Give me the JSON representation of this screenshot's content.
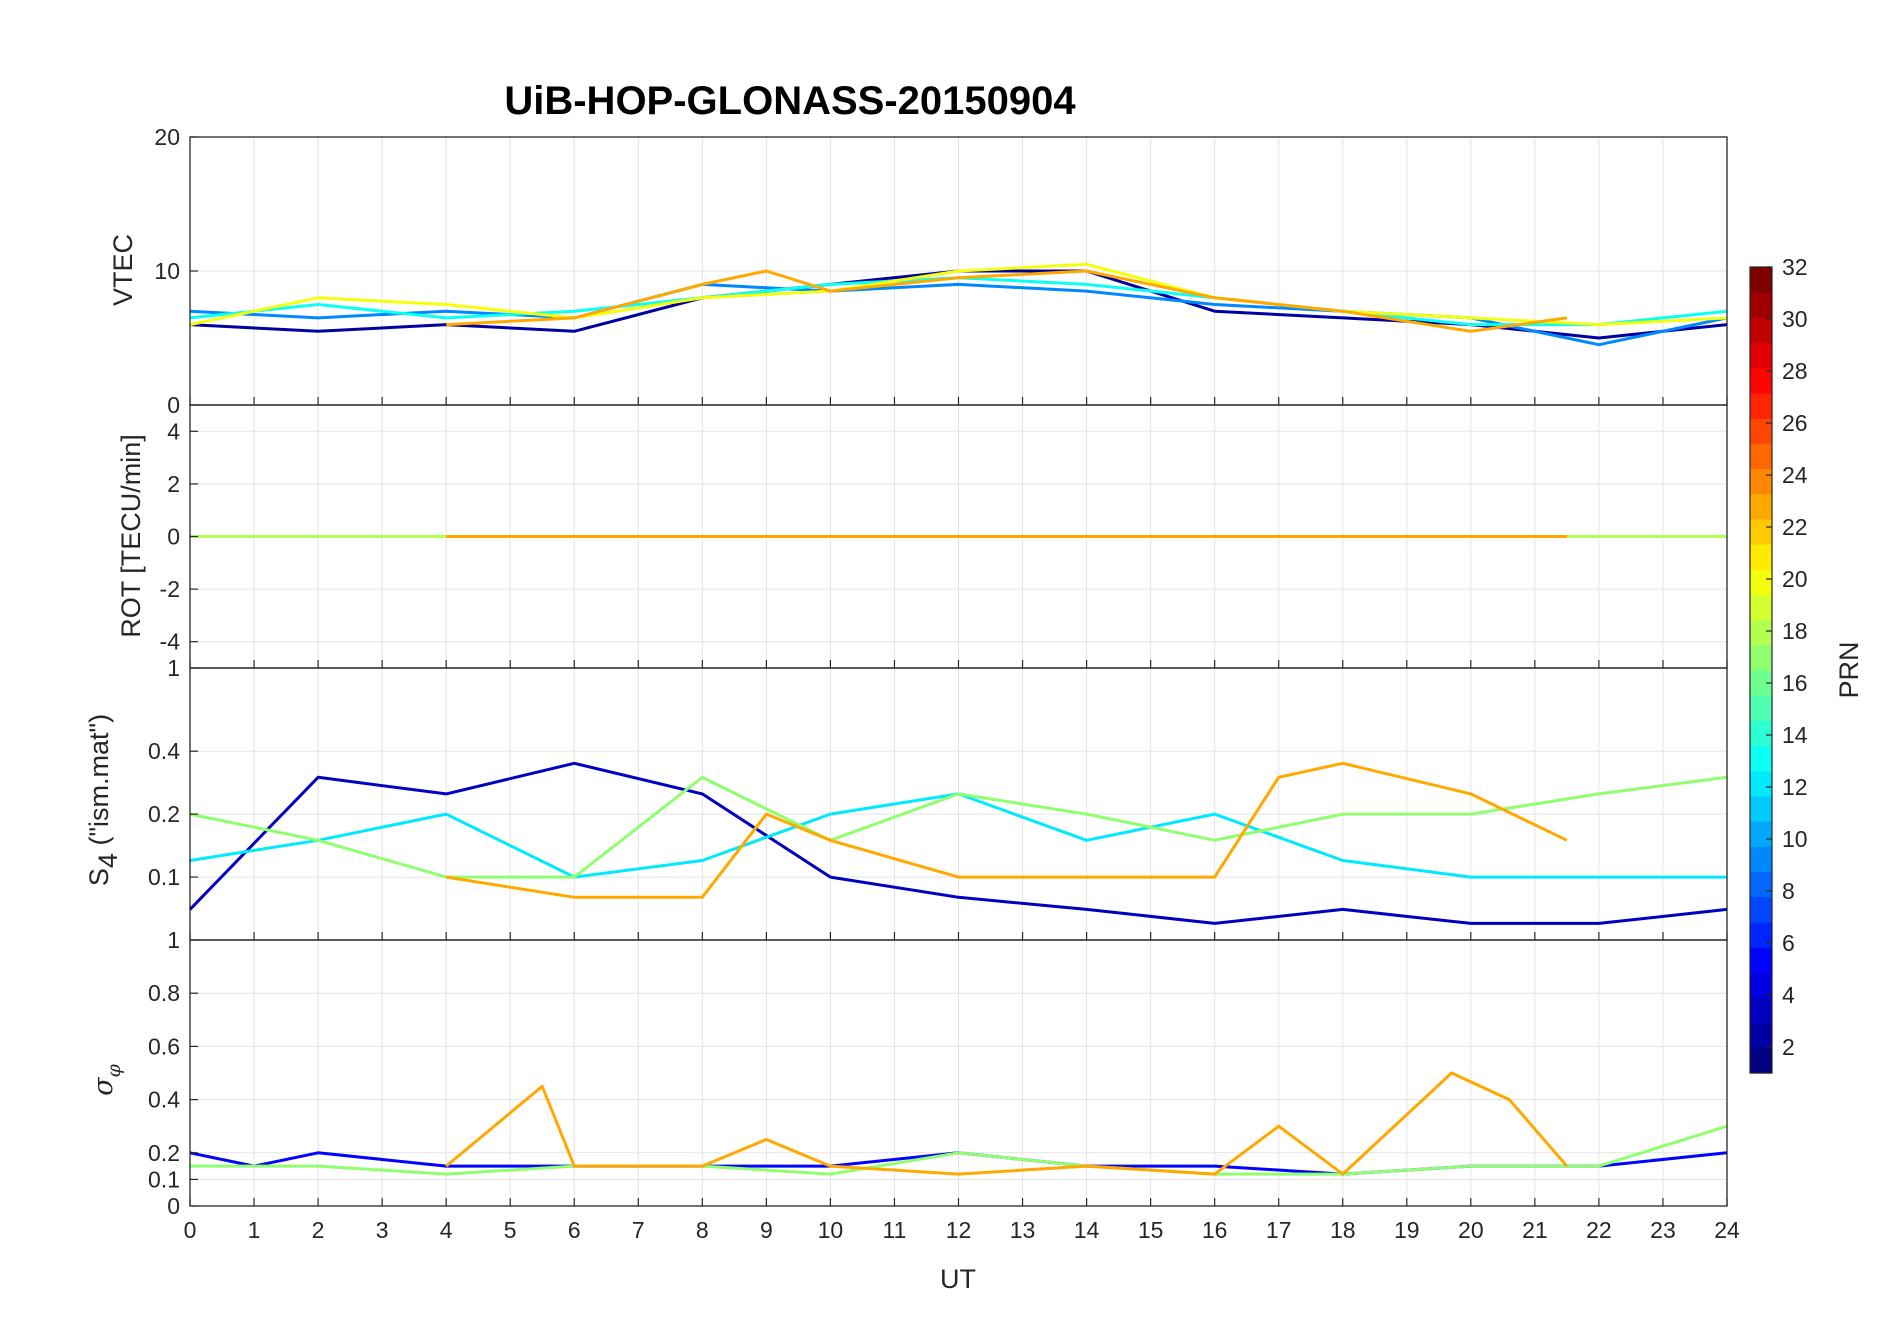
{
  "title": "UiB-HOP-GLONASS-20150904",
  "x_label": "UT",
  "x_ticks": [
    "0",
    "1",
    "2",
    "3",
    "4",
    "5",
    "6",
    "7",
    "8",
    "9",
    "10",
    "11",
    "12",
    "13",
    "14",
    "15",
    "16",
    "17",
    "18",
    "19",
    "20",
    "21",
    "22",
    "23",
    "24"
  ],
  "colorbar": {
    "label": "PRN",
    "ticks": [
      "2",
      "4",
      "6",
      "8",
      "10",
      "12",
      "14",
      "16",
      "18",
      "20",
      "22",
      "24",
      "26",
      "28",
      "30",
      "32"
    ],
    "colormap": "jet",
    "range": [
      1,
      32
    ]
  },
  "panels": {
    "vtec": {
      "ylabel": "VTEC",
      "ticks": [
        "0",
        "10",
        "20"
      ]
    },
    "rot": {
      "ylabel": "ROT [TECU/min]",
      "ticks": [
        "-4",
        "-2",
        "0",
        "2",
        "4"
      ]
    },
    "s4": {
      "ylabel_s": "S",
      "ylabel_sub": "4",
      "ylabel_rest": " (\"ism.mat\")",
      "ticks": [
        "0.1",
        "0.2",
        "0.4",
        "1"
      ]
    },
    "sigma": {
      "ylabel_sym": "σ",
      "ylabel_sub": "φ",
      "ticks": [
        "0",
        "0.1",
        "0.2",
        "0.4",
        "0.6",
        "0.8",
        "1"
      ]
    }
  },
  "chart_data": {
    "type": "line",
    "title": "UiB-HOP-GLONASS-20150904",
    "xlabel": "UT",
    "xlim": [
      0,
      24
    ],
    "color_by": "PRN",
    "color_range": [
      1,
      32
    ],
    "grid": true,
    "subplots": [
      {
        "ylabel": "VTEC",
        "ylim": [
          0,
          20
        ],
        "series": [
          {
            "prn": 2,
            "x": [
              0,
              2,
              4,
              6,
              8,
              10,
              12,
              14,
              16,
              18,
              20,
              22,
              24
            ],
            "y": [
              6,
              5.5,
              6,
              5.5,
              8,
              9,
              10,
              10,
              7,
              6.5,
              6,
              5,
              6
            ]
          },
          {
            "prn": 9,
            "x": [
              0,
              2,
              4,
              6,
              8,
              10,
              12,
              14,
              16,
              18,
              20,
              22,
              24
            ],
            "y": [
              7,
              6.5,
              7,
              6.5,
              9,
              8.5,
              9,
              8.5,
              7.5,
              7,
              6.5,
              4.5,
              6.5
            ]
          },
          {
            "prn": 13,
            "x": [
              0,
              2,
              4,
              6,
              8,
              10,
              12,
              14,
              16,
              18,
              20,
              22,
              24
            ],
            "y": [
              6.5,
              7.5,
              6.5,
              7,
              8,
              9,
              9.5,
              9,
              8,
              7,
              6,
              6,
              7
            ]
          },
          {
            "prn": 20,
            "x": [
              0,
              2,
              4,
              6,
              8,
              10,
              12,
              14,
              16,
              18,
              20,
              22,
              24
            ],
            "y": [
              6,
              8,
              7.5,
              6.5,
              8,
              8.5,
              10,
              10.5,
              8,
              7,
              6.5,
              6,
              6.5
            ]
          },
          {
            "prn": 23,
            "x": [
              4,
              6,
              8,
              9,
              10,
              12,
              14,
              16,
              18,
              20,
              21.5
            ],
            "y": [
              6,
              6.5,
              9,
              10,
              8.5,
              9.5,
              10,
              8,
              7,
              5.5,
              6.5
            ]
          }
        ]
      },
      {
        "ylabel": "ROT [TECU/min]",
        "ylim": [
          -5,
          5
        ],
        "series": [
          {
            "prn": 4,
            "x": [
              0,
              3,
              6,
              9,
              12,
              13,
              15,
              18,
              21,
              24
            ],
            "y": [
              0,
              0,
              0,
              0,
              0,
              0,
              0,
              0,
              0,
              0
            ]
          },
          {
            "prn": 18,
            "x": [
              0,
              3,
              6,
              9,
              12,
              13,
              15,
              18,
              21,
              24
            ],
            "y": [
              0,
              0,
              0,
              0,
              0,
              0,
              0,
              0,
              0,
              0
            ]
          },
          {
            "prn": 23,
            "x": [
              4,
              6,
              9,
              12,
              15,
              18,
              21.5
            ],
            "y": [
              0,
              0,
              0,
              0,
              0,
              0,
              0
            ]
          }
        ]
      },
      {
        "ylabel": "S4 (\"ism.mat\")",
        "ylim": [
          0.05,
          1
        ],
        "yscale": "log",
        "series": [
          {
            "prn": 3,
            "x": [
              0,
              2,
              4,
              6,
              8,
              10,
              12,
              14,
              16,
              18,
              20,
              22,
              24
            ],
            "y": [
              0.07,
              0.3,
              0.25,
              0.35,
              0.25,
              0.1,
              0.08,
              0.07,
              0.06,
              0.07,
              0.06,
              0.06,
              0.07
            ]
          },
          {
            "prn": 12,
            "x": [
              0,
              2,
              4,
              6,
              8,
              10,
              12,
              14,
              16,
              18,
              20,
              22,
              24
            ],
            "y": [
              0.12,
              0.15,
              0.2,
              0.1,
              0.12,
              0.2,
              0.25,
              0.15,
              0.2,
              0.12,
              0.1,
              0.1,
              0.1
            ]
          },
          {
            "prn": 17,
            "x": [
              0,
              2,
              4,
              6,
              8,
              10,
              12,
              14,
              16,
              18,
              20,
              22,
              24
            ],
            "y": [
              0.2,
              0.15,
              0.1,
              0.1,
              0.3,
              0.15,
              0.25,
              0.2,
              0.15,
              0.2,
              0.2,
              0.25,
              0.3
            ]
          },
          {
            "prn": 23,
            "x": [
              4,
              6,
              8,
              9,
              10,
              12,
              14,
              16,
              17,
              18,
              20,
              21.5
            ],
            "y": [
              0.1,
              0.08,
              0.08,
              0.2,
              0.15,
              0.1,
              0.1,
              0.1,
              0.3,
              0.35,
              0.25,
              0.15
            ]
          }
        ]
      },
      {
        "ylabel": "σφ",
        "ylim": [
          0,
          1
        ],
        "series": [
          {
            "prn": 5,
            "x": [
              0,
              1,
              2,
              4,
              6,
              8,
              10,
              12,
              14,
              16,
              18,
              20,
              22,
              24
            ],
            "y": [
              0.2,
              0.15,
              0.2,
              0.15,
              0.15,
              0.15,
              0.15,
              0.2,
              0.15,
              0.15,
              0.12,
              0.15,
              0.15,
              0.2
            ]
          },
          {
            "prn": 17,
            "x": [
              0,
              2,
              4,
              6,
              8,
              10,
              12,
              14,
              16,
              18,
              20,
              22,
              24
            ],
            "y": [
              0.15,
              0.15,
              0.12,
              0.15,
              0.15,
              0.12,
              0.2,
              0.15,
              0.12,
              0.12,
              0.15,
              0.15,
              0.3
            ]
          },
          {
            "prn": 23,
            "x": [
              4,
              5.5,
              6,
              8,
              9,
              10,
              12,
              14,
              16,
              17,
              18,
              19.7,
              20.6,
              21.5
            ],
            "y": [
              0.15,
              0.45,
              0.15,
              0.15,
              0.25,
              0.15,
              0.12,
              0.15,
              0.12,
              0.3,
              0.12,
              0.5,
              0.4,
              0.15
            ]
          }
        ]
      }
    ]
  }
}
